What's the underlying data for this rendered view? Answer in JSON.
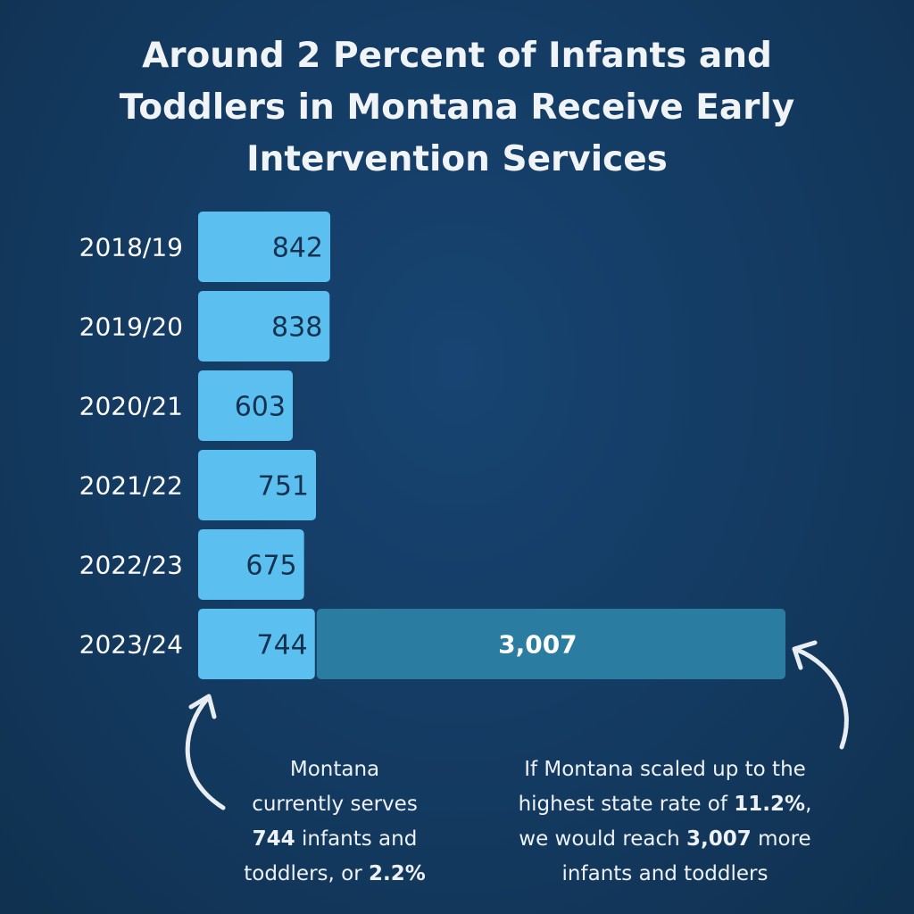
{
  "title": "Around 2 Percent of Infants and Toddlers in Montana Receive Early Intervention Services",
  "chart_data": {
    "type": "bar",
    "orientation": "horizontal",
    "title": "Around 2 Percent of Infants and Toddlers in Montana Receive Early Intervention Services",
    "categories": [
      "2018/19",
      "2019/20",
      "2020/21",
      "2021/22",
      "2022/23",
      "2023/24"
    ],
    "series": [
      {
        "values": [
          842,
          838,
          603,
          751,
          675,
          744
        ],
        "value_labels": [
          "842",
          "838",
          "603",
          "751",
          "675",
          "744"
        ],
        "color": "#5bc0ef"
      },
      {
        "values": [
          null,
          null,
          null,
          null,
          null,
          3007
        ],
        "value_labels": [
          "",
          "",
          "",
          "",
          "",
          "3,007"
        ],
        "stacked_on": 0,
        "color": "#2a7ca0"
      }
    ],
    "grid": false,
    "legend": "none"
  },
  "notes": {
    "left": {
      "line1": "Montana",
      "line2": "currently serves",
      "line3_bold": "744",
      "line3_rest": " infants and",
      "line4_rest": "toddlers, or ",
      "line4_bold": "2.2%"
    },
    "right": {
      "line1": "If Montana scaled up to the",
      "line2_rest": "highest state rate of ",
      "line2_bold": "11.2%",
      "line2_end": ",",
      "line3_rest": "we would reach ",
      "line3_bold": "3,007",
      "line3_end": " more",
      "line4": "infants and toddlers"
    }
  },
  "colors": {
    "background": "#13395f",
    "bar": "#5bc0ef",
    "extra_bar": "#2a7ca0",
    "text": "#ffffff",
    "value_text": "#15314f"
  }
}
